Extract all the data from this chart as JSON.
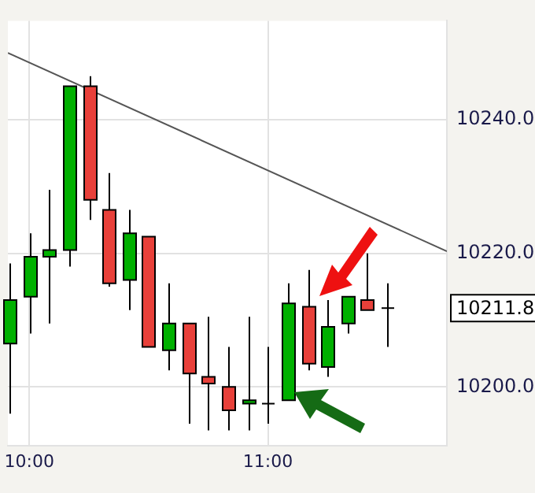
{
  "chart_data": {
    "type": "candlestick",
    "x": [
      9.9167,
      10,
      10.0833,
      10.1667,
      10.25,
      10.3333,
      10.4167,
      10.5,
      10.5833,
      10.6667,
      10.75,
      10.8333,
      10.9167,
      11,
      11.0833,
      11.1667,
      11.25,
      11.3333,
      11.4167,
      11.5
    ],
    "ohlc": [
      [
        10206.5,
        10218.5,
        10196,
        10213
      ],
      [
        10213.5,
        10223,
        10208,
        10219.5
      ],
      [
        10219.5,
        10229.5,
        10209.5,
        10220.5
      ],
      [
        10220.5,
        10245,
        10218,
        10245
      ],
      [
        10245,
        10246.5,
        10225,
        10228
      ],
      [
        10226.5,
        10232,
        10215,
        10215.5
      ],
      [
        10216,
        10226.5,
        10211.5,
        10223
      ],
      [
        10222.5,
        10222.5,
        10206,
        10206
      ],
      [
        10205.5,
        10215.5,
        10202.5,
        10209.5
      ],
      [
        10209.5,
        10209.5,
        10194.5,
        10202
      ],
      [
        10201.5,
        10210.5,
        10193.5,
        10200.5
      ],
      [
        10200,
        10206,
        10193.5,
        10196.5
      ],
      [
        10197.5,
        10210.5,
        10193.5,
        10198
      ],
      [
        10197.5,
        10206,
        10194.5,
        10197.5
      ],
      [
        10198,
        10215.5,
        10198,
        10212.5
      ],
      [
        10212,
        10217.5,
        10202.5,
        10203.5
      ],
      [
        10203,
        10213,
        10201.5,
        10209
      ],
      [
        10209.5,
        10213.5,
        10208,
        10213.5
      ],
      [
        10213,
        10220,
        10211.5,
        10211.5
      ],
      [
        10211.8,
        10215.5,
        10206,
        10211.8
      ]
    ],
    "colors": [
      "#00b000",
      "#00b000",
      "#00b000",
      "#00b000",
      "#e8403a",
      "#e8403a",
      "#00b000",
      "#e8403a",
      "#00b000",
      "#e8403a",
      "#e8403a",
      "#e8403a",
      "#00b000",
      "#000000",
      "#00b000",
      "#e8403a",
      "#00b000",
      "#00b000",
      "#e8403a",
      "#000000"
    ],
    "series": [
      {
        "type": "line",
        "color": "#555555",
        "x": [
          9.91,
          11.75
        ],
        "values": [
          10250,
          10220.3
        ]
      }
    ],
    "xlim": [
      9.91,
      11.75
    ],
    "xticks": [
      {
        "value": 10,
        "label": "10:00"
      },
      {
        "value": 11,
        "label": "11:00"
      }
    ],
    "ylim": [
      10191.2,
      10254.8
    ],
    "yticks": [
      {
        "value": 10200,
        "label": "10200.0"
      },
      {
        "value": 10220,
        "label": "10220.0"
      },
      {
        "value": 10240,
        "label": "10240.0"
      }
    ],
    "annotations": [
      "10211.8"
    ],
    "grid": true,
    "legend": false
  }
}
